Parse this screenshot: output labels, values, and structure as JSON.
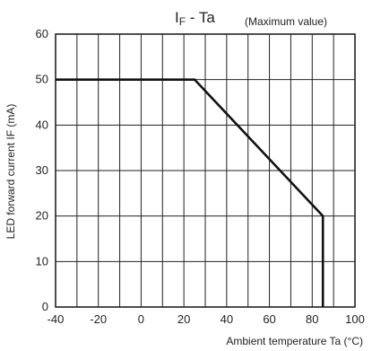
{
  "chart_data": {
    "type": "line",
    "title_main": "I",
    "title_sub": "F",
    "title_tail": " - Ta",
    "title_note": "(Maximum value)",
    "xlabel": "Ambient temperature Ta (°C)",
    "ylabel": "LED forward current IF (mA)",
    "xlim": [
      -40,
      100
    ],
    "ylim": [
      0,
      60
    ],
    "x_ticks": [
      -40,
      -20,
      0,
      20,
      40,
      60,
      80,
      100
    ],
    "y_ticks": [
      0,
      10,
      20,
      30,
      40,
      50,
      60
    ],
    "x_grid_step": 10,
    "y_grid_step": 10,
    "grid": true,
    "series": [
      {
        "x": [
          -40,
          25,
          85,
          85
        ],
        "y": [
          50,
          50,
          20,
          0
        ]
      }
    ]
  }
}
